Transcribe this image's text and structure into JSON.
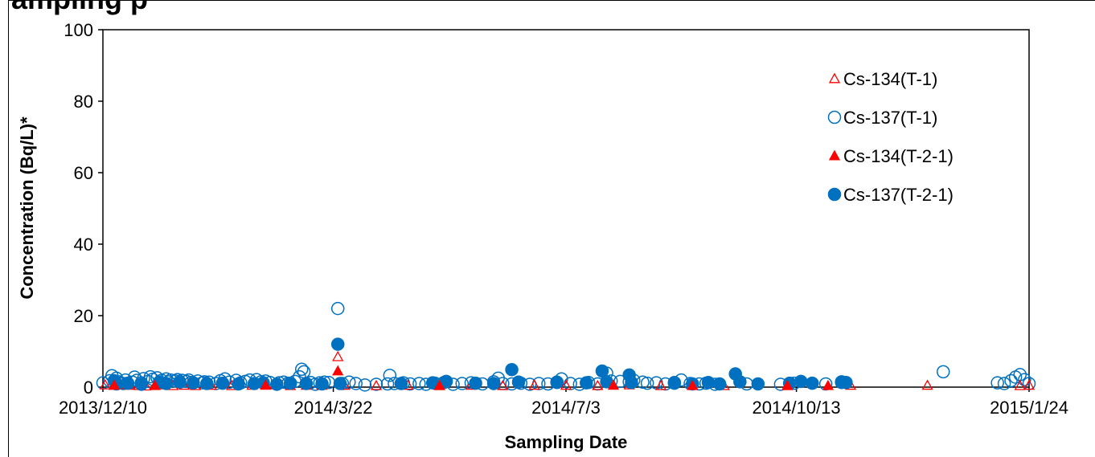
{
  "page": {
    "title_fragment": "ampling p"
  },
  "chart_data": {
    "type": "scatter",
    "title": "",
    "xlabel": "Sampling Date",
    "ylabel": "Concentration (Bq/L)*",
    "xlim": [
      "2013/12/10",
      "2015/1/24"
    ],
    "ylim": [
      0,
      100
    ],
    "x_ticks": [
      "2013/12/10",
      "2014/3/22",
      "2014/7/3",
      "2014/10/13",
      "2015/1/24"
    ],
    "y_ticks": [
      0,
      20,
      40,
      60,
      80,
      100
    ],
    "grid": false,
    "legend_position": "top-right",
    "colors": {
      "red": "#ff0000",
      "blue": "#0070c0"
    },
    "series": [
      {
        "name": "Cs-134(T-1)",
        "marker": "triangle-open",
        "color": "#ff0000",
        "points": [
          [
            "2013/12/11",
            0.6
          ],
          [
            "2013/12/15",
            0.5
          ],
          [
            "2013/12/18",
            0.7
          ],
          [
            "2013/12/22",
            0.5
          ],
          [
            "2013/12/26",
            0.4
          ],
          [
            "2013/12/29",
            0.3
          ],
          [
            "2014/1/2",
            0.5
          ],
          [
            "2014/1/6",
            0.6
          ],
          [
            "2014/1/10",
            0.4
          ],
          [
            "2014/1/15",
            0.5
          ],
          [
            "2014/1/20",
            0.4
          ],
          [
            "2014/1/27",
            0.5
          ],
          [
            "2014/2/5",
            0.4
          ],
          [
            "2014/2/14",
            0.5
          ],
          [
            "2014/2/24",
            0.6
          ],
          [
            "2014/3/3",
            0.4
          ],
          [
            "2014/3/10",
            0.5
          ],
          [
            "2014/3/17",
            0.5
          ],
          [
            "2014/3/24",
            8.5
          ],
          [
            "2014/3/27",
            0.5
          ],
          [
            "2014/4/10",
            0.4
          ],
          [
            "2014/4/24",
            0.5
          ],
          [
            "2014/5/8",
            0.4
          ],
          [
            "2014/5/22",
            0.5
          ],
          [
            "2014/6/5",
            0.4
          ],
          [
            "2014/6/19",
            0.5
          ],
          [
            "2014/7/3",
            0.5
          ],
          [
            "2014/7/17",
            0.4
          ],
          [
            "2014/7/31",
            0.6
          ],
          [
            "2014/8/14",
            0.4
          ],
          [
            "2014/8/28",
            0.5
          ],
          [
            "2014/9/11",
            0.4
          ],
          [
            "2014/10/9",
            0.4
          ],
          [
            "2014/11/6",
            0.5
          ],
          [
            "2014/12/10",
            0.5
          ],
          [
            "2015/1/20",
            0.4
          ],
          [
            "2015/1/24",
            0.5
          ]
        ]
      },
      {
        "name": "Cs-137(T-1)",
        "marker": "circle-open",
        "color": "#0070c0",
        "points": [
          [
            "2013/12/10",
            1.2
          ],
          [
            "2013/12/13",
            1.8
          ],
          [
            "2013/12/14",
            3.2
          ],
          [
            "2013/12/16",
            2.5
          ],
          [
            "2013/12/17",
            1.5
          ],
          [
            "2013/12/19",
            1.0
          ],
          [
            "2013/12/20",
            2.0
          ],
          [
            "2013/12/23",
            1.4
          ],
          [
            "2013/12/24",
            2.8
          ],
          [
            "2013/12/25",
            1.9
          ],
          [
            "2013/12/27",
            1.2
          ],
          [
            "2013/12/28",
            2.4
          ],
          [
            "2013/12/30",
            1.6
          ],
          [
            "2013/12/31",
            2.9
          ],
          [
            "2014/1/1",
            2.2
          ],
          [
            "2014/1/3",
            2.6
          ],
          [
            "2014/1/4",
            1.3
          ],
          [
            "2014/1/5",
            1.9
          ],
          [
            "2014/1/7",
            2.3
          ],
          [
            "2014/1/8",
            1.5
          ],
          [
            "2014/1/9",
            2.0
          ],
          [
            "2014/1/11",
            1.7
          ],
          [
            "2014/1/12",
            2.1
          ],
          [
            "2014/1/13",
            1.4
          ],
          [
            "2014/1/14",
            1.9
          ],
          [
            "2014/1/16",
            1.6
          ],
          [
            "2014/1/17",
            2.0
          ],
          [
            "2014/1/18",
            1.3
          ],
          [
            "2014/1/21",
            1.7
          ],
          [
            "2014/1/23",
            1.2
          ],
          [
            "2014/1/24",
            1.5
          ],
          [
            "2014/1/26",
            1.4
          ],
          [
            "2014/1/29",
            1.0
          ],
          [
            "2014/1/31",
            1.8
          ],
          [
            "2014/2/2",
            2.3
          ],
          [
            "2014/2/4",
            1.4
          ],
          [
            "2014/2/7",
            1.9
          ],
          [
            "2014/2/9",
            1.2
          ],
          [
            "2014/2/11",
            1.6
          ],
          [
            "2014/2/13",
            2.0
          ],
          [
            "2014/2/16",
            2.1
          ],
          [
            "2014/2/18",
            1.5
          ],
          [
            "2014/2/20",
            1.7
          ],
          [
            "2014/2/22",
            1.3
          ],
          [
            "2014/2/26",
            1.2
          ],
          [
            "2014/2/28",
            1.4
          ],
          [
            "2014/3/2",
            1.1
          ],
          [
            "2014/3/5",
            1.6
          ],
          [
            "2014/3/7",
            2.9
          ],
          [
            "2014/3/8",
            5.0
          ],
          [
            "2014/3/9",
            4.3
          ],
          [
            "2014/3/12",
            1.3
          ],
          [
            "2014/3/14",
            0.8
          ],
          [
            "2014/3/16",
            1.2
          ],
          [
            "2014/3/18",
            1.4
          ],
          [
            "2014/3/20",
            1.3
          ],
          [
            "2014/3/24",
            22.0
          ],
          [
            "2014/3/26",
            1.0
          ],
          [
            "2014/3/29",
            1.4
          ],
          [
            "2014/4/1",
            1.0
          ],
          [
            "2014/4/5",
            0.6
          ],
          [
            "2014/4/10",
            0.8
          ],
          [
            "2014/4/15",
            0.9
          ],
          [
            "2014/4/16",
            3.3
          ],
          [
            "2014/4/18",
            1.0
          ],
          [
            "2014/4/22",
            1.2
          ],
          [
            "2014/4/25",
            0.9
          ],
          [
            "2014/4/29",
            1.0
          ],
          [
            "2014/5/2",
            0.8
          ],
          [
            "2014/5/6",
            1.1
          ],
          [
            "2014/5/10",
            1.3
          ],
          [
            "2014/5/14",
            0.8
          ],
          [
            "2014/5/18",
            1.0
          ],
          [
            "2014/5/22",
            1.2
          ],
          [
            "2014/5/27",
            0.9
          ],
          [
            "2014/6/1",
            1.5
          ],
          [
            "2014/6/3",
            2.5
          ],
          [
            "2014/6/5",
            1.0
          ],
          [
            "2014/6/9",
            0.9
          ],
          [
            "2014/6/13",
            1.1
          ],
          [
            "2014/6/17",
            0.8
          ],
          [
            "2014/6/21",
            1.0
          ],
          [
            "2014/6/25",
            0.9
          ],
          [
            "2014/6/29",
            1.3
          ],
          [
            "2014/7/1",
            2.3
          ],
          [
            "2014/7/5",
            1.0
          ],
          [
            "2014/7/9",
            0.8
          ],
          [
            "2014/7/13",
            1.3
          ],
          [
            "2014/7/17",
            0.9
          ],
          [
            "2014/7/21",
            3.9
          ],
          [
            "2014/7/23",
            1.7
          ],
          [
            "2014/7/27",
            1.6
          ],
          [
            "2014/7/31",
            1.5
          ],
          [
            "2014/8/2",
            1.9
          ],
          [
            "2014/8/6",
            1.4
          ],
          [
            "2014/8/8",
            1.1
          ],
          [
            "2014/8/12",
            1.2
          ],
          [
            "2014/8/16",
            0.9
          ],
          [
            "2014/8/20",
            1.3
          ],
          [
            "2014/8/23",
            2.0
          ],
          [
            "2014/8/27",
            1.0
          ],
          [
            "2014/8/31",
            0.9
          ],
          [
            "2014/9/3",
            1.1
          ],
          [
            "2014/9/7",
            0.8
          ],
          [
            "2014/9/21",
            0.9
          ],
          [
            "2014/10/6",
            0.8
          ],
          [
            "2014/10/12",
            1.1
          ],
          [
            "2014/10/26",
            0.9
          ],
          [
            "2014/11/2",
            1.3
          ],
          [
            "2014/12/17",
            4.3
          ],
          [
            "2015/1/10",
            1.2
          ],
          [
            "2015/1/13",
            1.0
          ],
          [
            "2015/1/16",
            1.8
          ],
          [
            "2015/1/18",
            2.8
          ],
          [
            "2015/1/20",
            3.5
          ],
          [
            "2015/1/22",
            2.1
          ],
          [
            "2015/1/24",
            1.0
          ]
        ]
      },
      {
        "name": "Cs-134(T-2-1)",
        "marker": "triangle-filled",
        "color": "#ff0000",
        "points": [
          [
            "2013/12/15",
            0.5
          ],
          [
            "2014/1/2",
            0.4
          ],
          [
            "2014/2/20",
            0.5
          ],
          [
            "2014/3/24",
            4.5
          ],
          [
            "2014/5/8",
            0.4
          ],
          [
            "2014/7/24",
            0.5
          ],
          [
            "2014/8/28",
            0.4
          ],
          [
            "2014/10/9",
            0.4
          ],
          [
            "2014/10/27",
            0.4
          ]
        ]
      },
      {
        "name": "Cs-137(T-2-1)",
        "marker": "circle-filled",
        "color": "#0070c0",
        "points": [
          [
            "2013/12/15",
            1.8
          ],
          [
            "2013/12/16",
            0.9
          ],
          [
            "2013/12/21",
            1.1
          ],
          [
            "2013/12/27",
            0.8
          ],
          [
            "2014/1/4",
            1.4
          ],
          [
            "2014/1/7",
            1.0
          ],
          [
            "2014/1/13",
            1.5
          ],
          [
            "2014/1/19",
            1.2
          ],
          [
            "2014/1/25",
            1.0
          ],
          [
            "2014/2/1",
            1.1
          ],
          [
            "2014/2/8",
            0.9
          ],
          [
            "2014/2/15",
            1.0
          ],
          [
            "2014/2/19",
            1.2
          ],
          [
            "2014/2/25",
            0.8
          ],
          [
            "2014/3/3",
            1.1
          ],
          [
            "2014/3/10",
            1.0
          ],
          [
            "2014/3/17",
            0.9
          ],
          [
            "2014/3/24",
            12.0
          ],
          [
            "2014/3/25",
            1.0
          ],
          [
            "2014/4/21",
            1.0
          ],
          [
            "2014/5/5",
            1.2
          ],
          [
            "2014/5/11",
            1.6
          ],
          [
            "2014/5/24",
            1.1
          ],
          [
            "2014/6/1",
            1.0
          ],
          [
            "2014/6/9",
            4.9
          ],
          [
            "2014/6/12",
            1.4
          ],
          [
            "2014/6/29",
            1.4
          ],
          [
            "2014/7/12",
            1.2
          ],
          [
            "2014/7/19",
            4.5
          ],
          [
            "2014/7/21",
            1.5
          ],
          [
            "2014/7/31",
            3.4
          ],
          [
            "2014/8/1",
            1.3
          ],
          [
            "2014/8/20",
            1.1
          ],
          [
            "2014/8/28",
            0.9
          ],
          [
            "2014/9/4",
            1.3
          ],
          [
            "2014/9/9",
            0.9
          ],
          [
            "2014/9/16",
            3.7
          ],
          [
            "2014/9/18",
            1.5
          ],
          [
            "2014/9/26",
            0.9
          ],
          [
            "2014/10/10",
            1.1
          ],
          [
            "2014/10/15",
            1.6
          ],
          [
            "2014/10/20",
            1.1
          ],
          [
            "2014/11/2",
            1.5
          ],
          [
            "2014/11/4",
            1.3
          ]
        ]
      }
    ]
  }
}
